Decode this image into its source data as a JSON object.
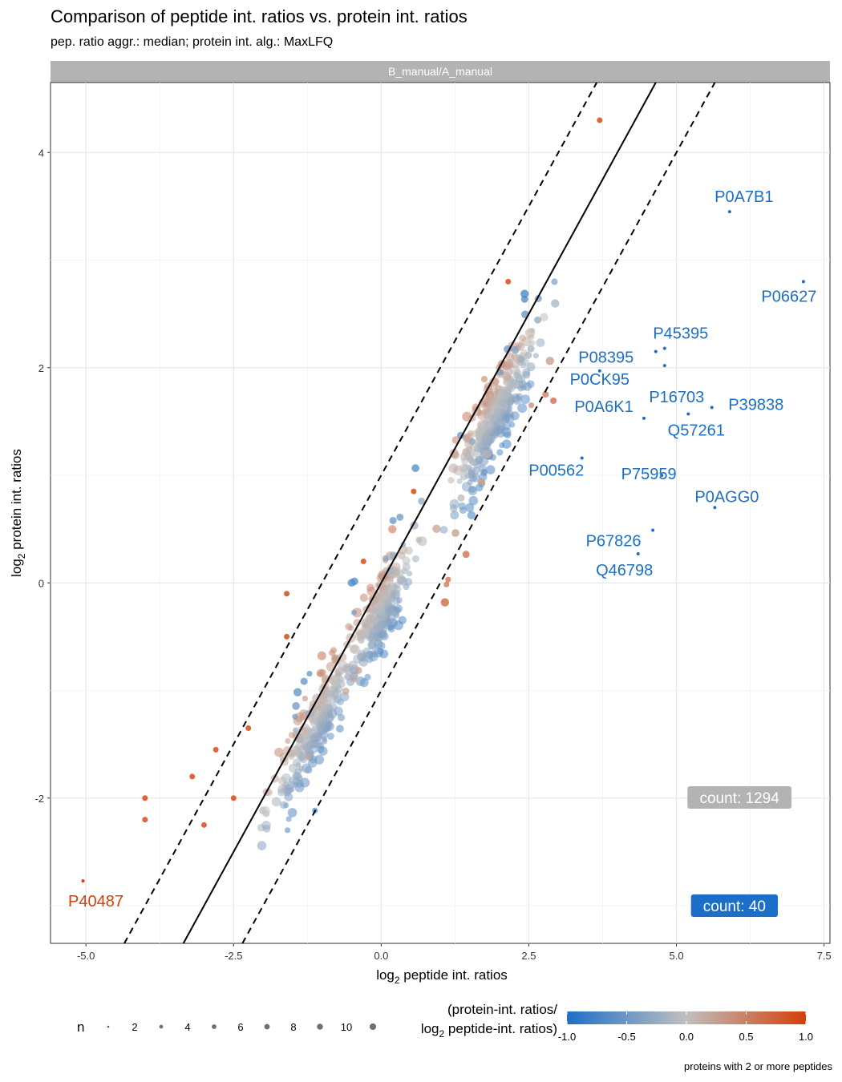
{
  "chart_data": {
    "type": "scatter",
    "title": "Comparison of peptide int. ratios vs. protein int. ratios",
    "subtitle": "pep. ratio aggr.: median; protein int. alg.: MaxLFQ",
    "facet": "B_manual/A_manual",
    "xlabel": "log",
    "xlabel_sub": "2",
    "xlabel_rest": " peptide int. ratios",
    "ylabel": "log",
    "ylabel_sub": "2",
    "ylabel_rest": " protein int. ratios",
    "xlim": [
      -5.6,
      7.6
    ],
    "ylim": [
      -3.35,
      4.65
    ],
    "x_ticks": [
      -5.0,
      -2.5,
      0.0,
      2.5,
      5.0,
      7.5
    ],
    "x_tick_labels": [
      "-5.0",
      "-2.5",
      "0.0",
      "2.5",
      "5.0",
      "7.5"
    ],
    "y_ticks": [
      -2,
      0,
      2,
      4
    ],
    "y_tick_labels": [
      "-2",
      "0",
      "2",
      "4"
    ],
    "grid": true,
    "reference_lines": [
      {
        "style": "solid",
        "intercept": 0,
        "slope": 1
      },
      {
        "style": "dashed",
        "intercept": 1,
        "slope": 1
      },
      {
        "style": "dashed",
        "intercept": -1,
        "slope": 1
      }
    ],
    "labeled_points": [
      {
        "label": "P0A7B1",
        "x": 5.9,
        "y": 3.45,
        "ratio": -1.0
      },
      {
        "label": "P06627",
        "x": 7.15,
        "y": 2.8,
        "ratio": -1.0
      },
      {
        "label": "P45395",
        "x": 4.8,
        "y": 2.18,
        "ratio": -1.0
      },
      {
        "label": "P08395",
        "x": 4.65,
        "y": 2.15,
        "ratio": -1.0
      },
      {
        "label": "P16703",
        "x": 4.8,
        "y": 2.02,
        "ratio": -1.0
      },
      {
        "label": "P0CK95",
        "x": 3.7,
        "y": 1.97,
        "ratio": -1.0
      },
      {
        "label": "P39838",
        "x": 5.6,
        "y": 1.63,
        "ratio": -1.0
      },
      {
        "label": "P0A6K1",
        "x": 4.45,
        "y": 1.53,
        "ratio": -1.0
      },
      {
        "label": "Q57261",
        "x": 5.2,
        "y": 1.57,
        "ratio": -1.0
      },
      {
        "label": "P00562",
        "x": 3.4,
        "y": 1.16,
        "ratio": -1.0
      },
      {
        "label": "P75959",
        "x": 4.75,
        "y": 1.0,
        "ratio": -1.0
      },
      {
        "label": "P0AGG0",
        "x": 5.65,
        "y": 0.7,
        "ratio": -1.0
      },
      {
        "label": "P67826",
        "x": 4.6,
        "y": 0.49,
        "ratio": -1.0
      },
      {
        "label": "Q46798",
        "x": 4.35,
        "y": 0.27,
        "ratio": -1.0
      },
      {
        "label": "P40487",
        "x": -5.05,
        "y": -2.77,
        "ratio": 1.0
      }
    ],
    "count_boxes": [
      {
        "label": "count: 1294",
        "color": "#b3b3b3"
      },
      {
        "label": "count: 40",
        "color": "#1c6fc9"
      }
    ],
    "legend": {
      "size_title": "n",
      "size_breaks": [
        2,
        4,
        6,
        8,
        10
      ],
      "size_labels": [
        "2",
        "4",
        "6",
        "8",
        "10"
      ],
      "color_title_line1": "(protein-int. ratios/",
      "color_title_line2_pre": "log",
      "color_title_line2_sub": "2",
      "color_title_line2_post": " peptide-int. ratios)",
      "color_breaks": [
        -1.0,
        -0.5,
        0.0,
        0.5,
        1.0
      ],
      "color_labels": [
        "-1.0",
        "-0.5",
        "0.0",
        "0.5",
        "1.0"
      ],
      "color_low": "#1c6fc9",
      "color_mid": "#bfbfbf",
      "color_high": "#d34009"
    },
    "caption": "proteins with 2 or more peptides",
    "colors": {
      "strip": "#b3b3b3",
      "blue": "#1c6fc9",
      "grey": "#b3b3b3",
      "orange": "#d34009"
    }
  }
}
